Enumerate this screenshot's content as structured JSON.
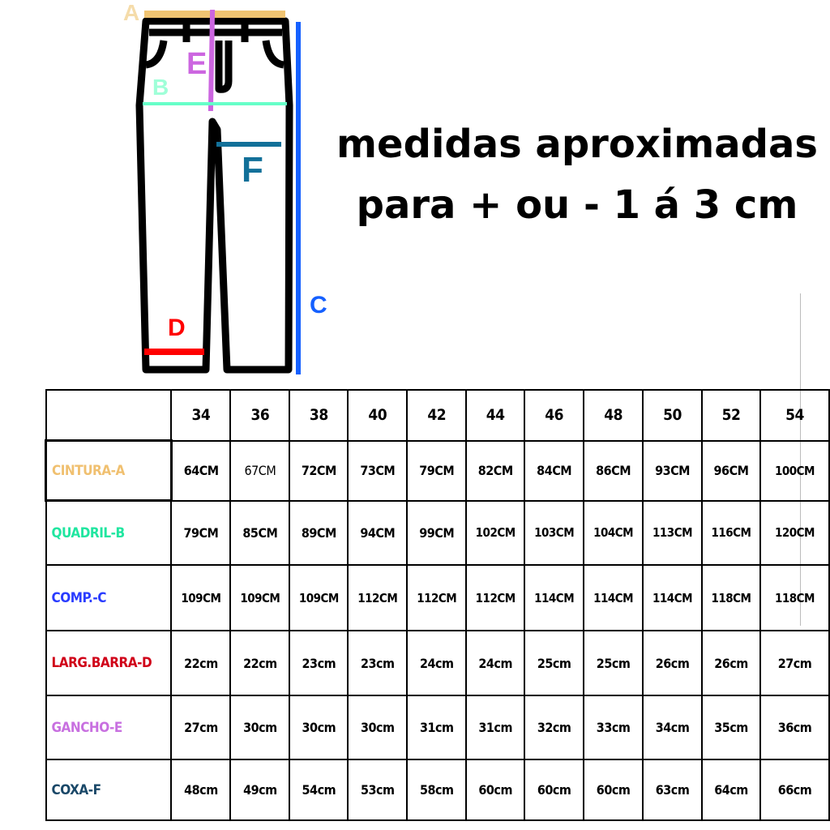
{
  "diagram": {
    "labels": {
      "a": "A",
      "b": "B",
      "c": "C",
      "d": "D",
      "e": "E",
      "f": "F"
    },
    "colors": {
      "a": "#f0c472",
      "b": "#66ffc8",
      "c": "#1560ff",
      "d": "#ff0000",
      "e": "#cc66e0",
      "f": "#127099"
    }
  },
  "title": {
    "line1": "medidas aproximadas",
    "line2": "para + ou - 1 á 3 cm"
  },
  "table": {
    "sizes": [
      "34",
      "36",
      "38",
      "40",
      "42",
      "44",
      "46",
      "48",
      "50",
      "52",
      "54"
    ],
    "rows": [
      {
        "label": "CINTURA-A",
        "color": "#f0c070",
        "values": [
          "64CM",
          "67CM",
          "72CM",
          "73CM",
          "79CM",
          "82CM",
          "84CM",
          "86CM",
          "93CM",
          "96CM",
          "100CM"
        ]
      },
      {
        "label": "QUADRIL-B",
        "color": "#20e6a0",
        "values": [
          "79CM",
          "85CM",
          "89CM",
          "94CM",
          "99CM",
          "102CM",
          "103CM",
          "104CM",
          "113CM",
          "116CM",
          "120CM"
        ]
      },
      {
        "label": "COMP.-C",
        "color": "#2a3cff",
        "values": [
          "109CM",
          "109CM",
          "109CM",
          "112CM",
          "112CM",
          "112CM",
          "114CM",
          "114CM",
          "114CM",
          "118CM",
          "118CM"
        ]
      },
      {
        "label": "LARG.BARRA-D",
        "color": "#d00018",
        "values": [
          "22cm",
          "22cm",
          "23cm",
          "23cm",
          "24cm",
          "24cm",
          "25cm",
          "25cm",
          "26cm",
          "26cm",
          "27cm"
        ]
      },
      {
        "label": "GANCHO-E",
        "color": "#c870e0",
        "values": [
          "27cm",
          "30cm",
          "30cm",
          "30cm",
          "31cm",
          "31cm",
          "32cm",
          "33cm",
          "34cm",
          "35cm",
          "36cm"
        ]
      },
      {
        "label": "COXA-F",
        "color": "#1a4868",
        "values": [
          "48cm",
          "49cm",
          "54cm",
          "53cm",
          "58cm",
          "60cm",
          "60cm",
          "60cm",
          "63cm",
          "64cm",
          "66cm"
        ]
      }
    ]
  }
}
